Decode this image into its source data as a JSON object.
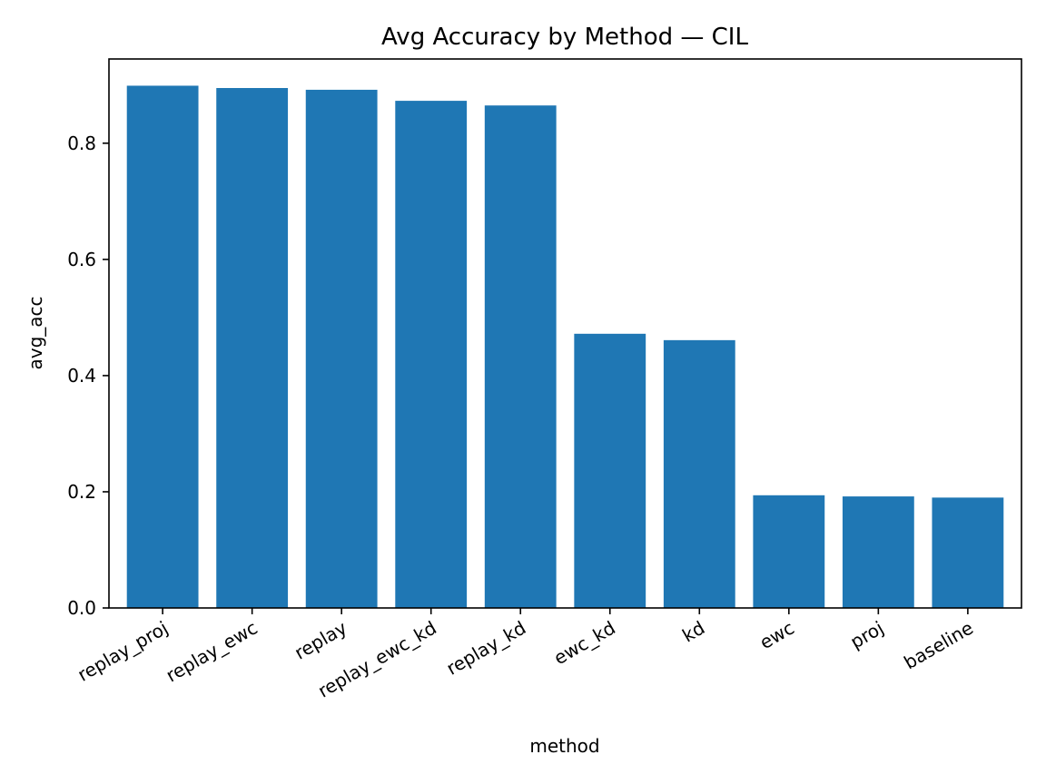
{
  "chart_data": {
    "type": "bar",
    "title": "Avg Accuracy by Method — CIL",
    "xlabel": "method",
    "ylabel": "avg_acc",
    "categories": [
      "replay_proj",
      "replay_ewc",
      "replay",
      "replay_ewc_kd",
      "replay_kd",
      "ewc_kd",
      "kd",
      "ewc",
      "proj",
      "baseline"
    ],
    "values": [
      0.899,
      0.895,
      0.892,
      0.873,
      0.865,
      0.472,
      0.461,
      0.194,
      0.192,
      0.19
    ],
    "ylim": [
      0,
      0.945
    ],
    "yticks": [
      0.0,
      0.2,
      0.4,
      0.6,
      0.8
    ],
    "ytick_labels": [
      "0.0",
      "0.2",
      "0.4",
      "0.6",
      "0.8"
    ],
    "bar_color": "#1f77b4",
    "grid": false,
    "legend": "none"
  }
}
